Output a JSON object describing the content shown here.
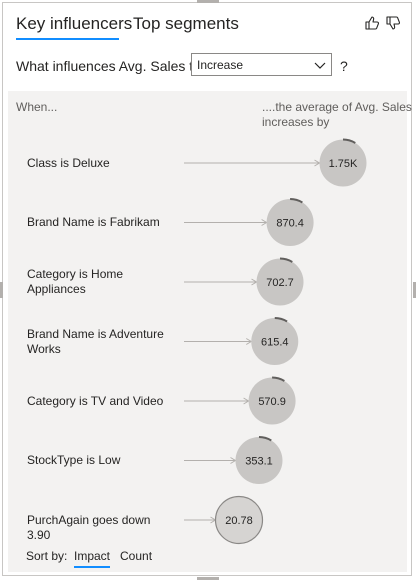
{
  "tabs": [
    {
      "label": "Key influencers",
      "active": true
    },
    {
      "label": "Top segments",
      "active": false
    }
  ],
  "question": {
    "prefix": "What influences Avg. Sales to",
    "dropdown_value": "Increase",
    "suffix": "?"
  },
  "panel": {
    "when_header": "When...",
    "avg_header": "....the average of Avg. Sales increases by"
  },
  "influencers": [
    {
      "label": "Class is Deluxe",
      "value": "1.75K",
      "amount": 1750
    },
    {
      "label": "Brand Name is Fabrikam",
      "value": "870.4",
      "amount": 870.4
    },
    {
      "label": "Category is Home Appliances",
      "value": "702.7",
      "amount": 702.7
    },
    {
      "label": "Brand Name is Adventure Works",
      "value": "615.4",
      "amount": 615.4
    },
    {
      "label": "Category is TV and Video",
      "value": "570.9",
      "amount": 570.9
    },
    {
      "label": "StockType is Low",
      "value": "353.1",
      "amount": 353.1
    },
    {
      "label": "PurchAgain goes down 3.90",
      "value": "20.78",
      "amount": 20.78,
      "selected": true
    }
  ],
  "sort": {
    "label": "Sort by:",
    "options": [
      {
        "label": "Impact",
        "active": true
      },
      {
        "label": "Count",
        "active": false
      }
    ]
  },
  "colors": {
    "accent": "#118dff",
    "bubble": "#c8c6c4",
    "bubble_selected": "#d6d4d2",
    "panel_bg": "#f3f2f1"
  },
  "icons": [
    "thumbs-up-icon",
    "thumbs-down-icon",
    "chevron-down-icon"
  ]
}
